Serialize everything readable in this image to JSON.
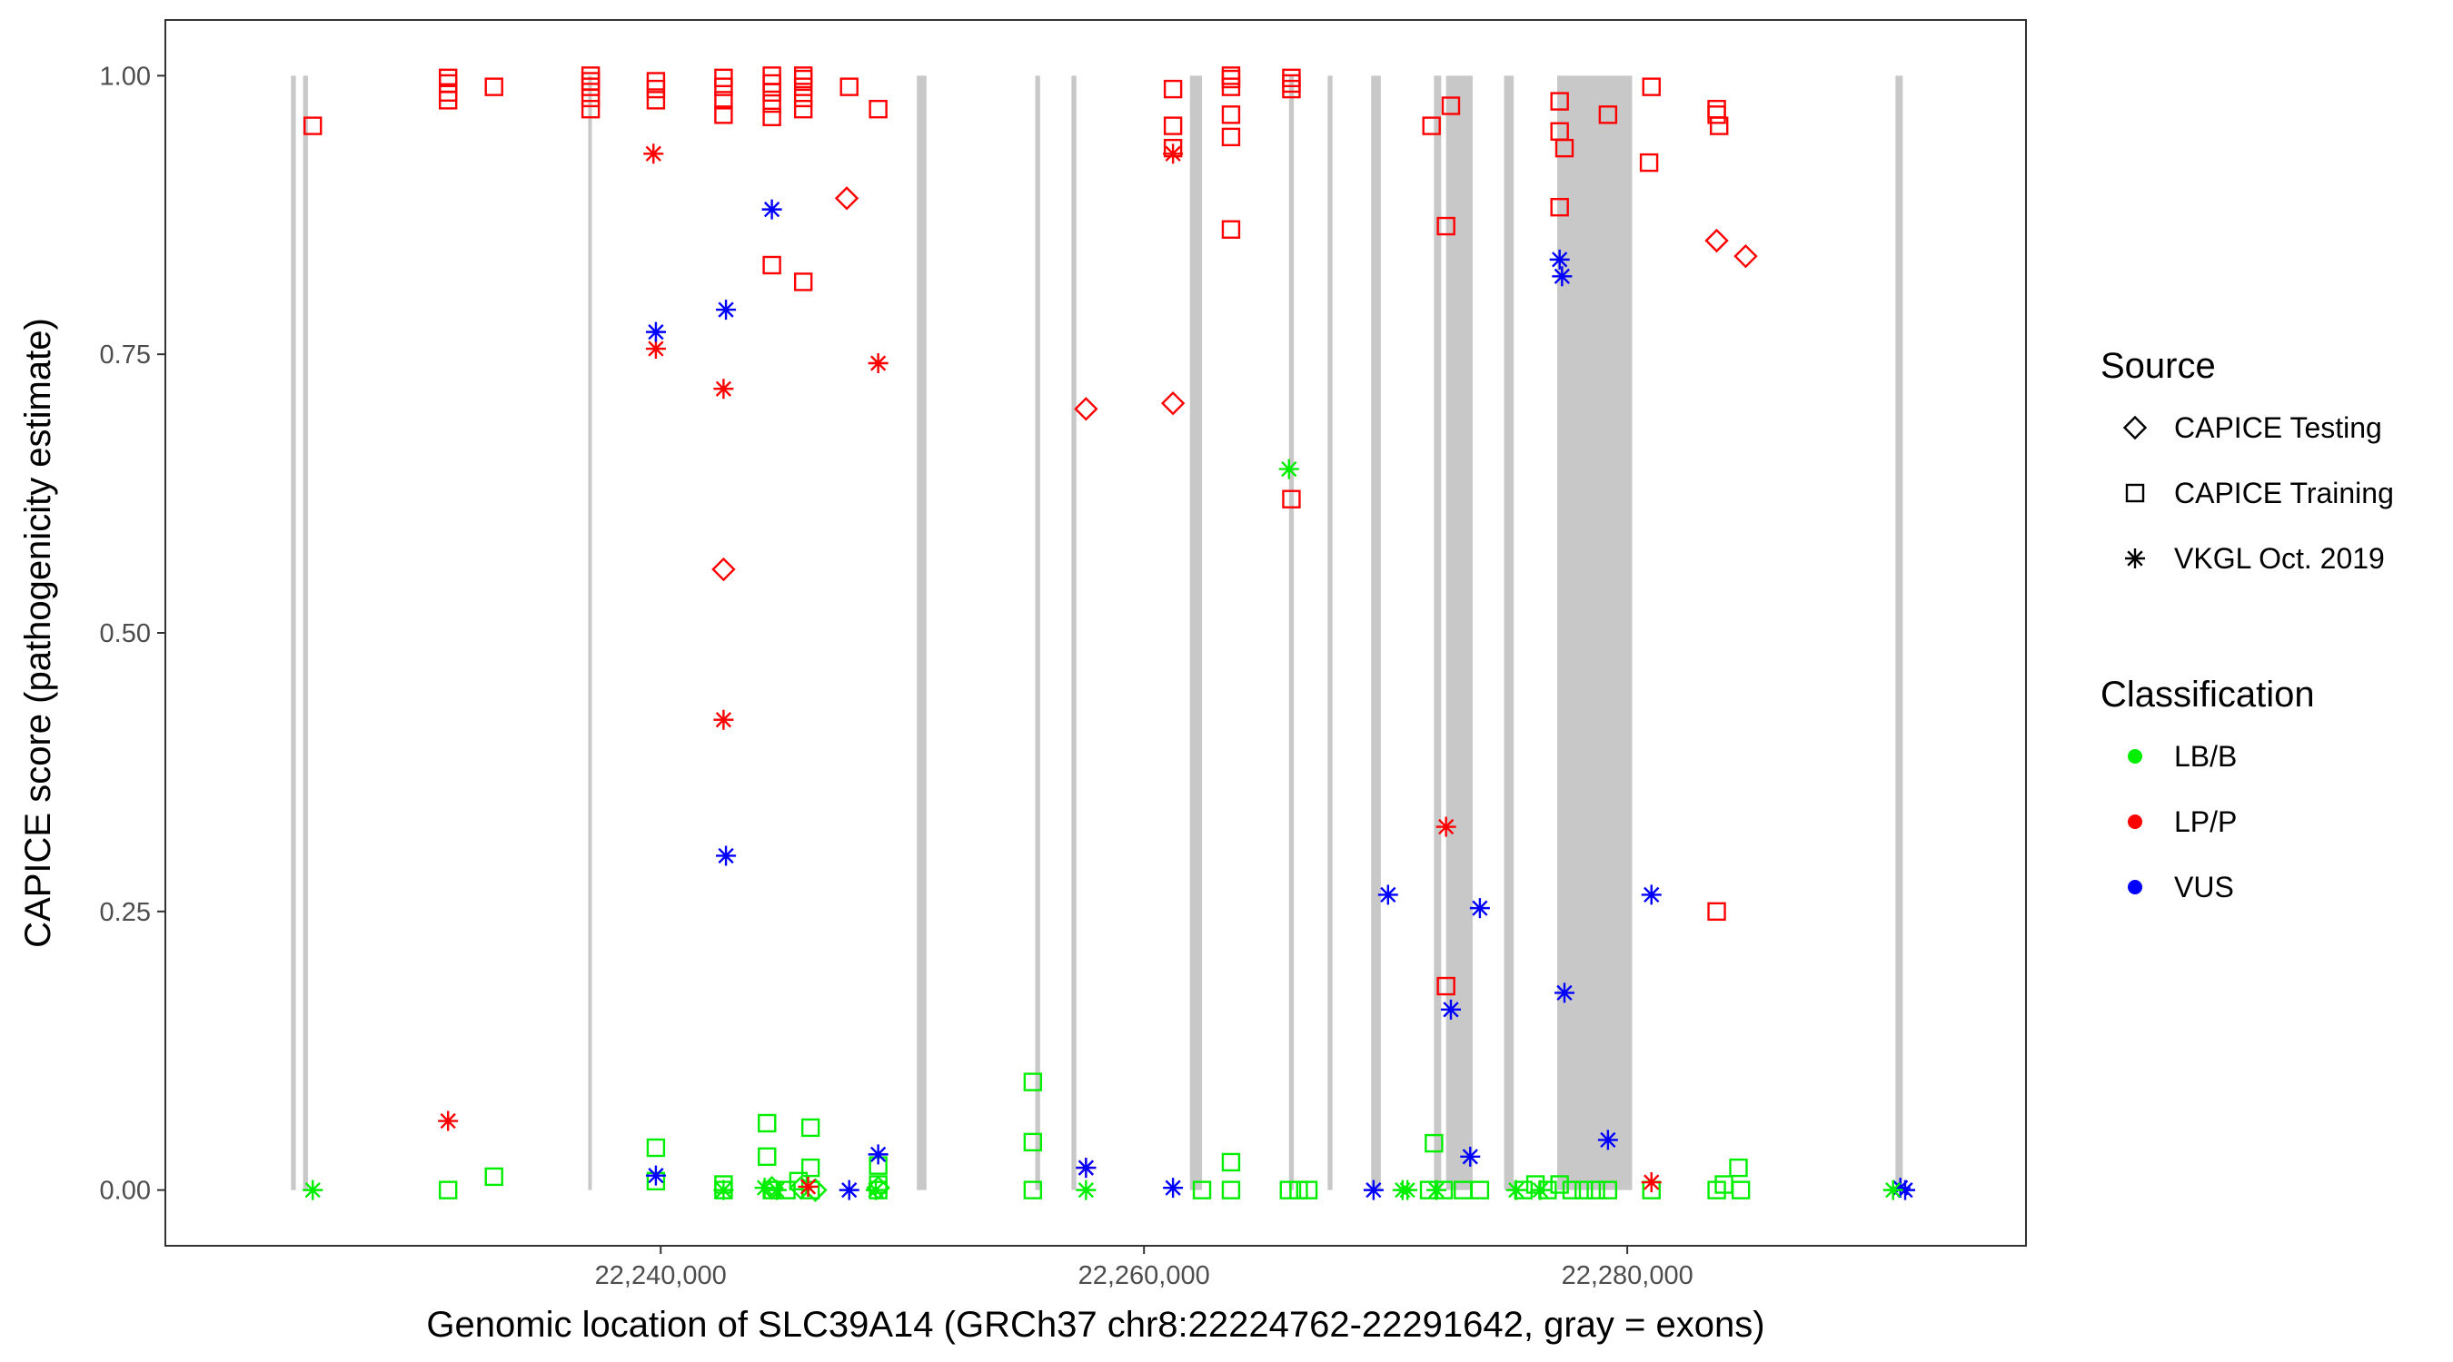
{
  "chart_data": {
    "type": "scatter",
    "title": "",
    "xlabel": "Genomic location of SLC39A14 (GRCh37 chr8:22224762-22291642, gray = exons)",
    "ylabel": "CAPICE score (pathogenicity estimate)",
    "xlim": [
      22219500,
      22296500
    ],
    "ylim": [
      -0.05,
      1.05
    ],
    "x_ticks": [
      22240000,
      22260000,
      22280000
    ],
    "x_tick_labels": [
      "22,240,000",
      "22,260,000",
      "22,280,000"
    ],
    "y_ticks": [
      0,
      0.25,
      0.5,
      0.75,
      1.0
    ],
    "y_tick_labels": [
      "0.00",
      "0.25",
      "0.50",
      "0.75",
      "1.00"
    ],
    "grid": false,
    "legend_position": "right",
    "exons": [
      [
        22224700,
        22224900
      ],
      [
        22225200,
        22225400
      ],
      [
        22237000,
        22237150
      ],
      [
        22250600,
        22251000
      ],
      [
        22255500,
        22255700
      ],
      [
        22257000,
        22257200
      ],
      [
        22261900,
        22262400
      ],
      [
        22266000,
        22266200
      ],
      [
        22267600,
        22267800
      ],
      [
        22269400,
        22269800
      ],
      [
        22272000,
        22272300
      ],
      [
        22272500,
        22273600
      ],
      [
        22274900,
        22275300
      ],
      [
        22277100,
        22280200
      ],
      [
        22291100,
        22291400
      ]
    ],
    "exon_color": "#c8c8c8",
    "legends": {
      "source": {
        "title": "Source",
        "entries": [
          "CAPICE Testing",
          "CAPICE Training",
          "VKGL Oct. 2019"
        ],
        "shapes": [
          "diamond",
          "square",
          "asterisk"
        ]
      },
      "classification": {
        "title": "Classification",
        "entries": [
          "LB/B",
          "LP/P",
          "VUS"
        ],
        "colors": [
          "#00ee00",
          "#ff0000",
          "#0000ff"
        ]
      }
    },
    "series": [
      {
        "source": "CAPICE Training",
        "classification": "LP/P",
        "points": [
          [
            22225600,
            0.955
          ],
          [
            22231200,
            0.978
          ],
          [
            22231200,
            0.985
          ],
          [
            22231200,
            0.993
          ],
          [
            22231200,
            0.998
          ],
          [
            22233100,
            0.99
          ],
          [
            22237100,
            0.97
          ],
          [
            22237100,
            0.98
          ],
          [
            22237100,
            0.99
          ],
          [
            22237100,
            0.995
          ],
          [
            22237100,
            1.0
          ],
          [
            22239800,
            0.978
          ],
          [
            22239800,
            0.988
          ],
          [
            22239800,
            0.995
          ],
          [
            22242600,
            0.965
          ],
          [
            22242600,
            0.978
          ],
          [
            22242600,
            0.99
          ],
          [
            22242600,
            0.998
          ],
          [
            22244600,
            0.963
          ],
          [
            22244600,
            0.975
          ],
          [
            22244600,
            0.985
          ],
          [
            22244600,
            0.993
          ],
          [
            22244600,
            1.0
          ],
          [
            22245900,
            0.97
          ],
          [
            22245900,
            0.98
          ],
          [
            22245900,
            0.99
          ],
          [
            22245900,
            0.997
          ],
          [
            22245900,
            1.0
          ],
          [
            22247800,
            0.99
          ],
          [
            22249000,
            0.97
          ],
          [
            22244600,
            0.83
          ],
          [
            22245900,
            0.815
          ],
          [
            22261200,
            0.935
          ],
          [
            22261200,
            0.955
          ],
          [
            22261200,
            0.988
          ],
          [
            22263600,
            0.945
          ],
          [
            22263600,
            0.965
          ],
          [
            22263600,
            0.99
          ],
          [
            22263600,
            0.997
          ],
          [
            22263600,
            1.0
          ],
          [
            22263600,
            0.862
          ],
          [
            22266100,
            0.988
          ],
          [
            22266100,
            0.993
          ],
          [
            22266100,
            0.998
          ],
          [
            22266100,
            0.62
          ],
          [
            22271900,
            0.955
          ],
          [
            22272700,
            0.973
          ],
          [
            22272500,
            0.865
          ],
          [
            22272500,
            0.183
          ],
          [
            22277200,
            0.977
          ],
          [
            22277200,
            0.95
          ],
          [
            22277400,
            0.935
          ],
          [
            22277200,
            0.882
          ],
          [
            22279200,
            0.965
          ],
          [
            22281000,
            0.99
          ],
          [
            22280900,
            0.922
          ],
          [
            22283700,
            0.97
          ],
          [
            22283700,
            0.965
          ],
          [
            22283800,
            0.955
          ],
          [
            22283700,
            0.25
          ]
        ]
      },
      {
        "source": "CAPICE Training",
        "classification": "LB/B",
        "points": [
          [
            22231200,
            0.0
          ],
          [
            22233100,
            0.012
          ],
          [
            22239800,
            0.038
          ],
          [
            22239800,
            0.008
          ],
          [
            22242600,
            0.0
          ],
          [
            22242600,
            0.005
          ],
          [
            22244400,
            0.06
          ],
          [
            22244400,
            0.03
          ],
          [
            22244600,
            0.0
          ],
          [
            22245200,
            0.0
          ],
          [
            22245700,
            0.008
          ],
          [
            22246200,
            0.056
          ],
          [
            22246200,
            0.02
          ],
          [
            22246200,
            0.0
          ],
          [
            22249000,
            0.022
          ],
          [
            22249000,
            0.0
          ],
          [
            22249000,
            0.005
          ],
          [
            22255400,
            0.097
          ],
          [
            22255400,
            0.043
          ],
          [
            22255400,
            0.0
          ],
          [
            22262400,
            0.0
          ],
          [
            22263600,
            0.025
          ],
          [
            22263600,
            0.0
          ],
          [
            22266000,
            0.0
          ],
          [
            22266400,
            0.0
          ],
          [
            22266800,
            0.0
          ],
          [
            22272000,
            0.042
          ],
          [
            22271800,
            0.0
          ],
          [
            22272400,
            0.0
          ],
          [
            22273200,
            0.0
          ],
          [
            22273900,
            0.0
          ],
          [
            22275700,
            0.0
          ],
          [
            22276200,
            0.005
          ],
          [
            22276700,
            0.0
          ],
          [
            22277200,
            0.005
          ],
          [
            22277700,
            0.0
          ],
          [
            22278200,
            0.0
          ],
          [
            22278700,
            0.0
          ],
          [
            22279200,
            0.0
          ],
          [
            22281000,
            0.0
          ],
          [
            22283700,
            0.0
          ],
          [
            22284000,
            0.005
          ],
          [
            22284600,
            0.02
          ],
          [
            22284700,
            0.0
          ]
        ]
      },
      {
        "source": "CAPICE Testing",
        "classification": "LP/P",
        "points": [
          [
            22247700,
            0.89
          ],
          [
            22242600,
            0.557
          ],
          [
            22257600,
            0.701
          ],
          [
            22261200,
            0.706
          ],
          [
            22283700,
            0.852
          ],
          [
            22284900,
            0.838
          ]
        ]
      },
      {
        "source": "CAPICE Testing",
        "classification": "LB/B",
        "points": [
          [
            22244600,
            0.002
          ],
          [
            22245800,
            0.002
          ],
          [
            22246400,
            0.0
          ],
          [
            22249000,
            0.002
          ]
        ]
      },
      {
        "source": "VKGL Oct. 2019",
        "classification": "LP/P",
        "points": [
          [
            22231200,
            0.062
          ],
          [
            22239700,
            0.93
          ],
          [
            22239800,
            0.755
          ],
          [
            22242600,
            0.719
          ],
          [
            22242600,
            0.422
          ],
          [
            22249000,
            0.742
          ],
          [
            22261200,
            0.93
          ],
          [
            22272500,
            0.326
          ],
          [
            22281000,
            0.007
          ],
          [
            22246100,
            0.003
          ],
          [
            22257600,
            0.02
          ]
        ]
      },
      {
        "source": "VKGL Oct. 2019",
        "classification": "VUS",
        "points": [
          [
            22244600,
            0.88
          ],
          [
            22242700,
            0.79
          ],
          [
            22239800,
            0.77
          ],
          [
            22242700,
            0.3
          ],
          [
            22239800,
            0.013
          ],
          [
            22249000,
            0.032
          ],
          [
            22247800,
            0.0
          ],
          [
            22257600,
            0.02
          ],
          [
            22261200,
            0.002
          ],
          [
            22269500,
            0.0
          ],
          [
            22270100,
            0.265
          ],
          [
            22272700,
            0.162
          ],
          [
            22273500,
            0.03
          ],
          [
            22273900,
            0.253
          ],
          [
            22277200,
            0.835
          ],
          [
            22277300,
            0.82
          ],
          [
            22277400,
            0.177
          ],
          [
            22279200,
            0.045
          ],
          [
            22281000,
            0.265
          ],
          [
            22291300,
            0.002
          ],
          [
            22291500,
            0.0
          ]
        ]
      },
      {
        "source": "VKGL Oct. 2019",
        "classification": "LB/B",
        "points": [
          [
            22225600,
            0.0
          ],
          [
            22242600,
            0.0
          ],
          [
            22244300,
            0.002
          ],
          [
            22244800,
            0.0
          ],
          [
            22248900,
            0.0
          ],
          [
            22257600,
            0.0
          ],
          [
            22266000,
            0.647
          ],
          [
            22270700,
            0.0
          ],
          [
            22270900,
            0.0
          ],
          [
            22272100,
            0.0
          ],
          [
            22275400,
            0.0
          ],
          [
            22276400,
            0.0
          ],
          [
            22291000,
            0.0
          ]
        ]
      }
    ]
  }
}
